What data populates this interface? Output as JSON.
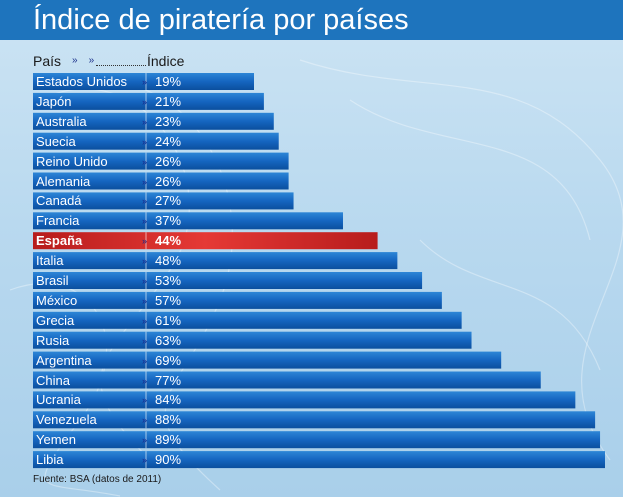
{
  "header": {
    "title": "Índice de piratería por países"
  },
  "columns": {
    "country": "País",
    "index": "Índice"
  },
  "source": "Fuente: BSA (datos de 2011)",
  "colors": {
    "bar": "#1565c0",
    "highlight": "#c62828",
    "title_bg": "#1e74bd"
  },
  "chart_data": {
    "type": "bar",
    "orientation": "horizontal",
    "title": "Índice de piratería por países",
    "categories": [
      "Estados Unidos",
      "Japón",
      "Australia",
      "Suecia",
      "Reino Unido",
      "Alemania",
      "Canadá",
      "Francia",
      "España",
      "Italia",
      "Brasil",
      "México",
      "Grecia",
      "Rusia",
      "Argentina",
      "China",
      "Ucrania",
      "Venezuela",
      "Yemen",
      "Libia"
    ],
    "values": [
      19,
      21,
      23,
      24,
      26,
      26,
      27,
      37,
      44,
      48,
      53,
      57,
      61,
      63,
      69,
      77,
      84,
      88,
      89,
      90
    ],
    "labels": [
      "19%",
      "21%",
      "23%",
      "24%",
      "26%",
      "26%",
      "27%",
      "37%",
      "44%",
      "48%",
      "53%",
      "57%",
      "61%",
      "63%",
      "69%",
      "77%",
      "84%",
      "88%",
      "89%",
      "90%"
    ],
    "highlight": "España",
    "xlim": [
      0,
      90
    ]
  }
}
